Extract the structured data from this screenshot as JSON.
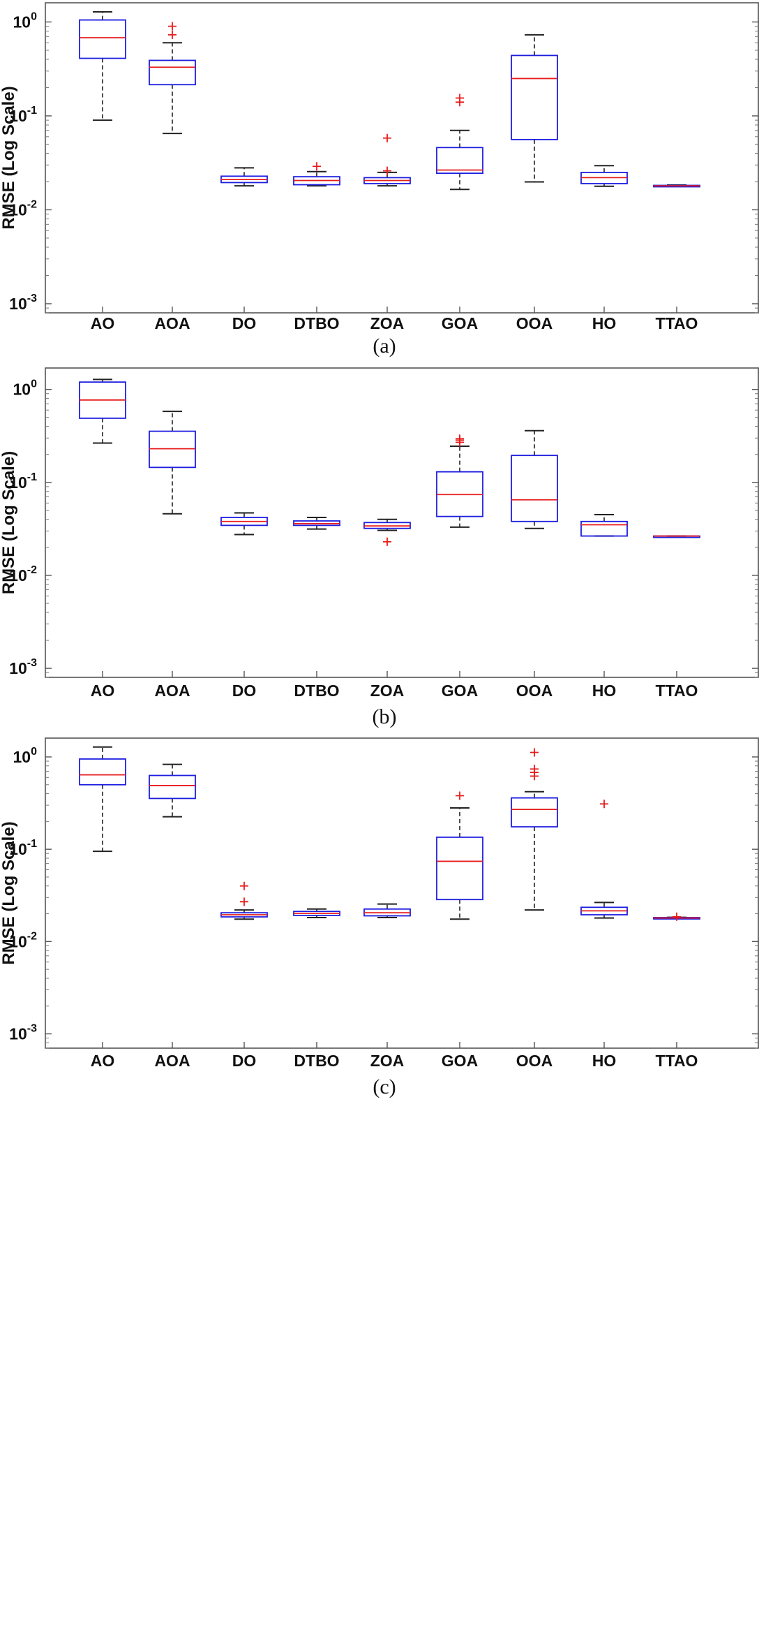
{
  "chart_data": [
    {
      "type": "boxplot",
      "caption": "(a)",
      "ylabel": "RMSE (Log Scale)",
      "yscale": "log",
      "ylim": [
        0.0008,
        1.6
      ],
      "yticks": [
        {
          "value": 1,
          "base": "10",
          "exp": "0"
        },
        {
          "value": 0.1,
          "base": "10",
          "exp": "-1"
        },
        {
          "value": 0.01,
          "base": "10",
          "exp": "-2"
        },
        {
          "value": 0.001,
          "base": "10",
          "exp": "-3"
        }
      ],
      "categories": [
        "AO",
        "AOA",
        "DO",
        "DTBO",
        "ZOA",
        "GOA",
        "OOA",
        "HO",
        "TTAO"
      ],
      "boxes": [
        {
          "min": 0.09,
          "q1": 0.41,
          "median": 0.68,
          "q3": 1.05,
          "max": 1.28,
          "outliers": []
        },
        {
          "min": 0.065,
          "q1": 0.215,
          "median": 0.33,
          "q3": 0.39,
          "max": 0.6,
          "outliers": [
            0.73,
            0.9
          ]
        },
        {
          "min": 0.018,
          "q1": 0.0195,
          "median": 0.021,
          "q3": 0.0228,
          "max": 0.028,
          "outliers": []
        },
        {
          "min": 0.018,
          "q1": 0.0185,
          "median": 0.0205,
          "q3": 0.0225,
          "max": 0.0255,
          "outliers": [
            0.029
          ]
        },
        {
          "min": 0.018,
          "q1": 0.019,
          "median": 0.0205,
          "q3": 0.022,
          "max": 0.025,
          "outliers": [
            0.026,
            0.058
          ]
        },
        {
          "min": 0.0165,
          "q1": 0.0245,
          "median": 0.0265,
          "q3": 0.046,
          "max": 0.07,
          "outliers": [
            0.14,
            0.155
          ]
        },
        {
          "min": 0.0198,
          "q1": 0.056,
          "median": 0.25,
          "q3": 0.44,
          "max": 0.73,
          "outliers": []
        },
        {
          "min": 0.0178,
          "q1": 0.019,
          "median": 0.022,
          "q3": 0.025,
          "max": 0.0295,
          "outliers": []
        },
        {
          "min": 0.0178,
          "q1": 0.0179,
          "median": 0.018,
          "q3": 0.0182,
          "max": 0.0184,
          "outliers": []
        }
      ]
    },
    {
      "type": "boxplot",
      "caption": "(b)",
      "ylabel": "RMSE (Log Scale)",
      "yscale": "log",
      "ylim": [
        0.0008,
        1.7
      ],
      "yticks": [
        {
          "value": 1,
          "base": "10",
          "exp": "0"
        },
        {
          "value": 0.1,
          "base": "10",
          "exp": "-1"
        },
        {
          "value": 0.01,
          "base": "10",
          "exp": "-2"
        },
        {
          "value": 0.001,
          "base": "10",
          "exp": "-3"
        }
      ],
      "categories": [
        "AO",
        "AOA",
        "DO",
        "DTBO",
        "ZOA",
        "GOA",
        "OOA",
        "HO",
        "TTAO"
      ],
      "boxes": [
        {
          "min": 0.265,
          "q1": 0.49,
          "median": 0.77,
          "q3": 1.2,
          "max": 1.28,
          "outliers": []
        },
        {
          "min": 0.046,
          "q1": 0.145,
          "median": 0.23,
          "q3": 0.355,
          "max": 0.58,
          "outliers": []
        },
        {
          "min": 0.0275,
          "q1": 0.0345,
          "median": 0.038,
          "q3": 0.042,
          "max": 0.047,
          "outliers": []
        },
        {
          "min": 0.0315,
          "q1": 0.0345,
          "median": 0.036,
          "q3": 0.0385,
          "max": 0.042,
          "outliers": []
        },
        {
          "min": 0.0305,
          "q1": 0.032,
          "median": 0.034,
          "q3": 0.037,
          "max": 0.04,
          "outliers": [
            0.023
          ]
        },
        {
          "min": 0.033,
          "q1": 0.043,
          "median": 0.074,
          "q3": 0.13,
          "max": 0.245,
          "outliers": [
            0.27,
            0.285,
            0.295
          ]
        },
        {
          "min": 0.032,
          "q1": 0.038,
          "median": 0.065,
          "q3": 0.195,
          "max": 0.36,
          "outliers": []
        },
        {
          "min": 0.0265,
          "q1": 0.0265,
          "median": 0.035,
          "q3": 0.038,
          "max": 0.045,
          "outliers": []
        },
        {
          "min": 0.0265,
          "q1": 0.0265,
          "median": 0.0265,
          "q3": 0.0265,
          "max": 0.0265,
          "outliers": []
        }
      ]
    },
    {
      "type": "boxplot",
      "caption": "(c)",
      "ylabel": "RMSE (Log Scale)",
      "yscale": "log",
      "ylim": [
        0.0007,
        1.6
      ],
      "yticks": [
        {
          "value": 1,
          "base": "10",
          "exp": "0"
        },
        {
          "value": 0.1,
          "base": "10",
          "exp": "-1"
        },
        {
          "value": 0.01,
          "base": "10",
          "exp": "-2"
        },
        {
          "value": 0.001,
          "base": "10",
          "exp": "-3"
        }
      ],
      "categories": [
        "AO",
        "AOA",
        "DO",
        "DTBO",
        "ZOA",
        "GOA",
        "OOA",
        "HO",
        "TTAO"
      ],
      "boxes": [
        {
          "min": 0.095,
          "q1": 0.5,
          "median": 0.64,
          "q3": 0.95,
          "max": 1.28,
          "outliers": []
        },
        {
          "min": 0.225,
          "q1": 0.355,
          "median": 0.49,
          "q3": 0.63,
          "max": 0.83,
          "outliers": []
        },
        {
          "min": 0.0175,
          "q1": 0.0185,
          "median": 0.0195,
          "q3": 0.0205,
          "max": 0.022,
          "outliers": [
            0.027,
            0.04
          ]
        },
        {
          "min": 0.0182,
          "q1": 0.0192,
          "median": 0.0202,
          "q3": 0.0212,
          "max": 0.0225,
          "outliers": []
        },
        {
          "min": 0.0182,
          "q1": 0.019,
          "median": 0.0205,
          "q3": 0.0225,
          "max": 0.0255,
          "outliers": []
        },
        {
          "min": 0.0175,
          "q1": 0.0285,
          "median": 0.074,
          "q3": 0.135,
          "max": 0.28,
          "outliers": [
            0.38
          ]
        },
        {
          "min": 0.022,
          "q1": 0.175,
          "median": 0.27,
          "q3": 0.36,
          "max": 0.42,
          "outliers": [
            0.62,
            0.68,
            0.74,
            1.12
          ]
        },
        {
          "min": 0.018,
          "q1": 0.0195,
          "median": 0.0215,
          "q3": 0.0235,
          "max": 0.0265,
          "outliers": [
            0.31
          ]
        },
        {
          "min": 0.0178,
          "q1": 0.0179,
          "median": 0.018,
          "q3": 0.0182,
          "max": 0.0183,
          "outliers": [
            0.0186
          ]
        }
      ]
    }
  ]
}
